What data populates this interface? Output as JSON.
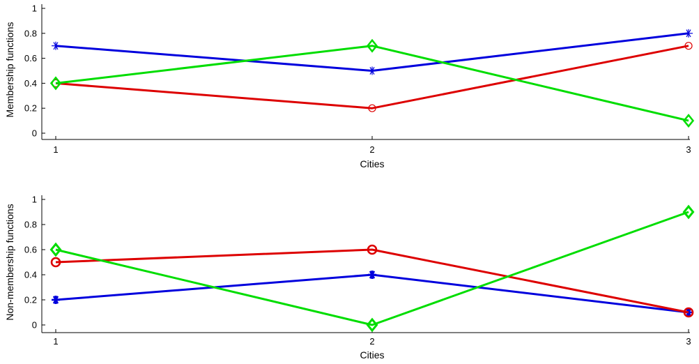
{
  "chart_data": [
    {
      "type": "line",
      "title": "",
      "xlabel": "Cities",
      "ylabel": "Membership functions",
      "xlim": [
        1,
        3
      ],
      "ylim": [
        0,
        1
      ],
      "x_ticks": [
        1,
        2,
        3
      ],
      "y_ticks": [
        0,
        0.2,
        0.4,
        0.6,
        0.8,
        1
      ],
      "x_tick_labels": [
        "1",
        "2",
        "3"
      ],
      "y_tick_labels": [
        "0",
        "0.2",
        "0.4",
        "0.6",
        "0.8",
        "1"
      ],
      "grid": false,
      "x": [
        1,
        2,
        3
      ],
      "series": [
        {
          "color": "#0000dd",
          "marker": "asterisk",
          "values": [
            0.7,
            0.5,
            0.8
          ]
        },
        {
          "color": "#dd0000",
          "marker": "circle",
          "values": [
            0.4,
            0.2,
            0.7
          ]
        },
        {
          "color": "#00dd00",
          "marker": "diamond",
          "values": [
            0.4,
            0.7,
            0.1
          ]
        }
      ]
    },
    {
      "type": "line",
      "title": "",
      "xlabel": "Cities",
      "ylabel": "Non-membership functions",
      "xlim": [
        1,
        3
      ],
      "ylim": [
        0,
        1
      ],
      "x_ticks": [
        1,
        2,
        3
      ],
      "y_ticks": [
        0,
        0.2,
        0.4,
        0.6,
        0.8,
        1
      ],
      "x_tick_labels": [
        "1",
        "2",
        "3"
      ],
      "y_tick_labels": [
        "0",
        "0.2",
        "0.4",
        "0.6",
        "0.8",
        "1"
      ],
      "grid": false,
      "x": [
        1,
        2,
        3
      ],
      "series": [
        {
          "color": "#0000dd",
          "marker": "asterisk",
          "values": [
            0.2,
            0.4,
            0.1
          ]
        },
        {
          "color": "#dd0000",
          "marker": "circle",
          "values": [
            0.5,
            0.6,
            0.1
          ]
        },
        {
          "color": "#00dd00",
          "marker": "diamond",
          "values": [
            0.6,
            0.0,
            0.9
          ]
        }
      ]
    }
  ]
}
